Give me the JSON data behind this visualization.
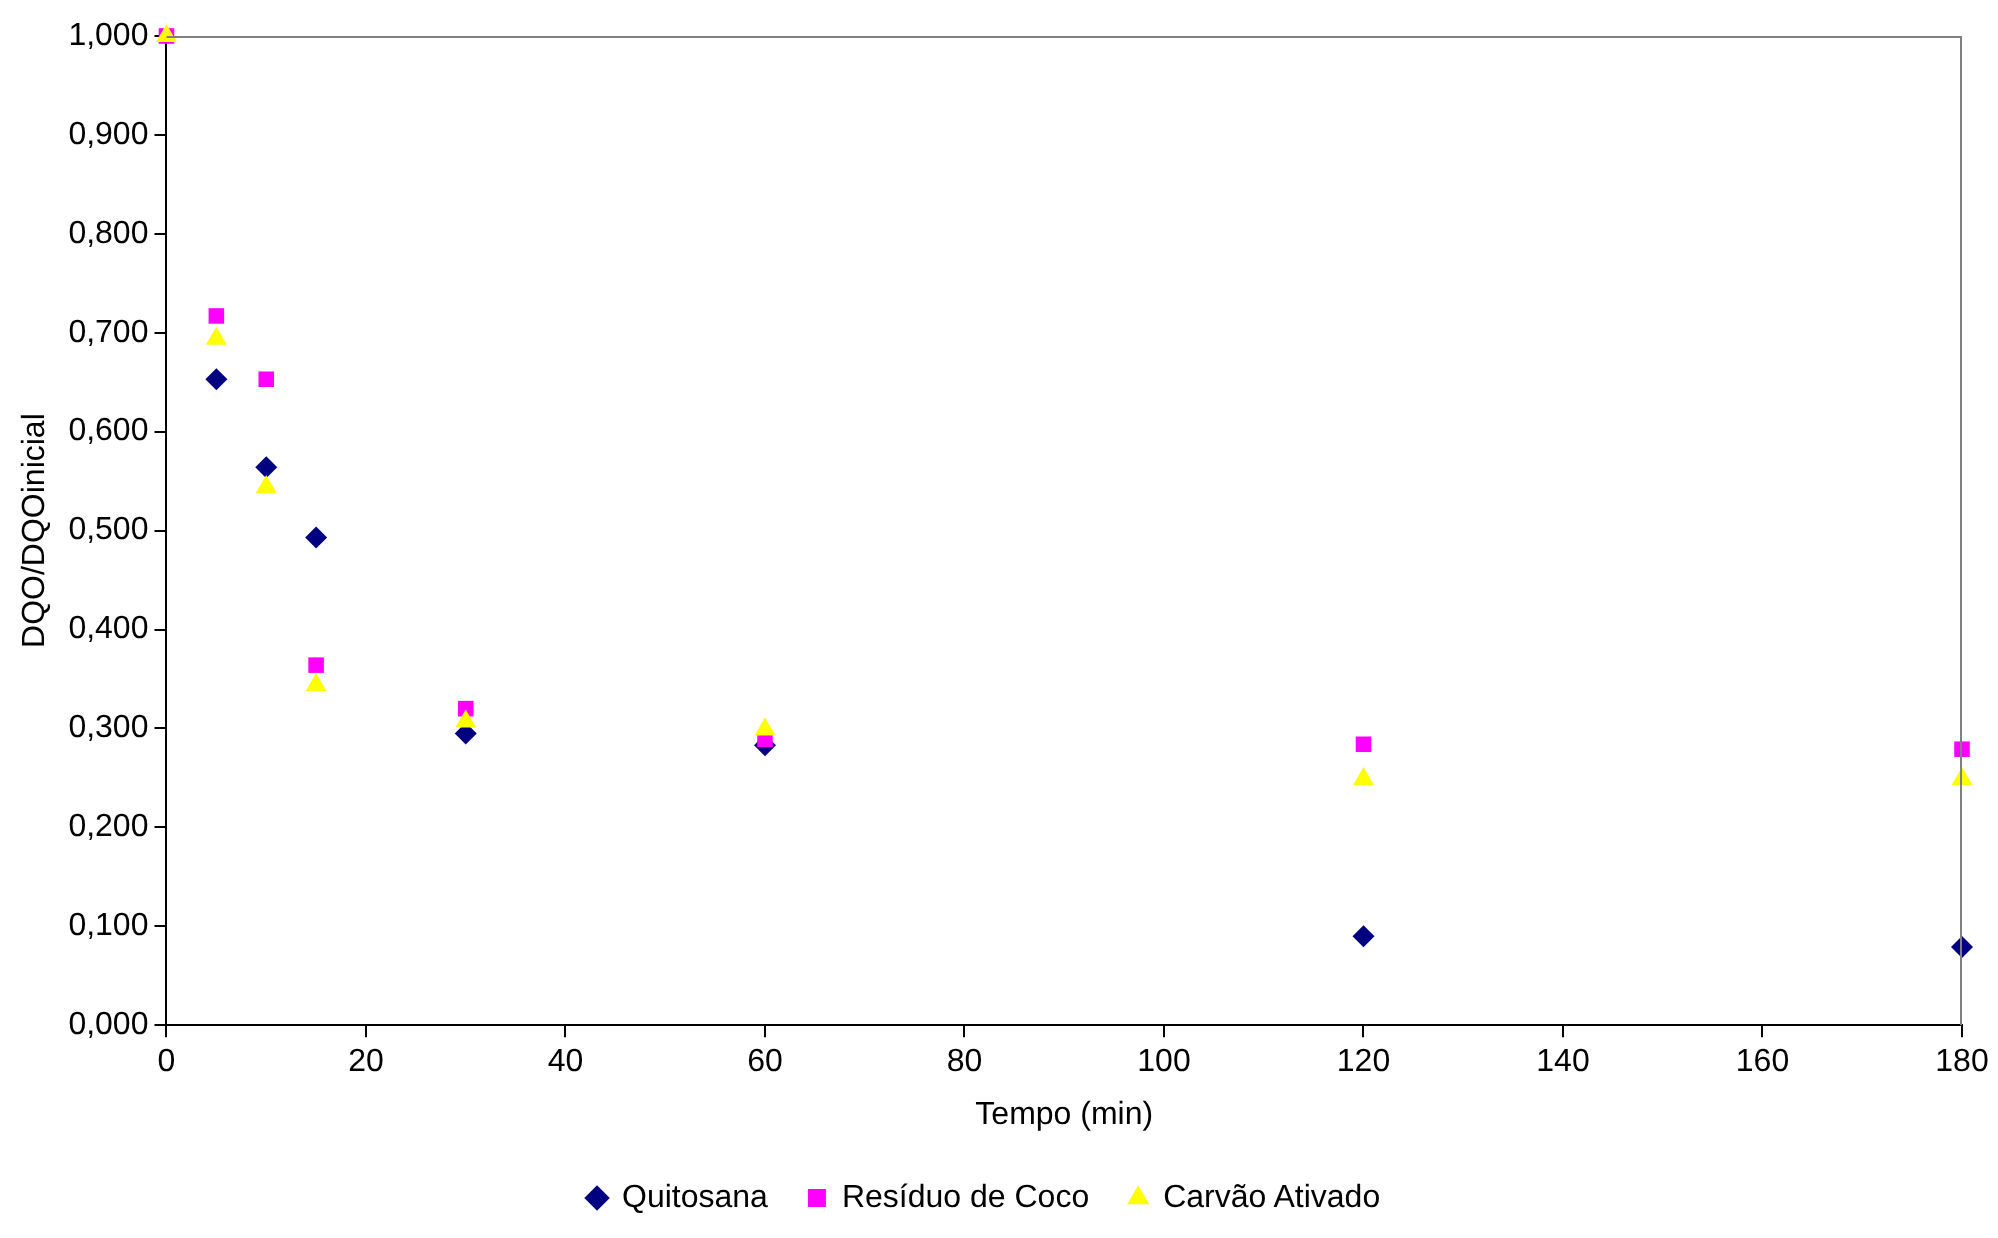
{
  "chart_data": {
    "type": "scatter",
    "xlabel": "Tempo (min)",
    "ylabel": "DQO/DQOinicial",
    "x": [
      0,
      5,
      10,
      15,
      30,
      60,
      120,
      180
    ],
    "series": [
      {
        "name": "Quitosana",
        "color": "#000080",
        "marker": "diamond",
        "values": [
          null,
          0.653,
          0.564,
          0.493,
          0.295,
          0.283,
          0.09,
          0.079
        ]
      },
      {
        "name": "Resíduo de Coco",
        "color": "#ff00ff",
        "marker": "square",
        "values": [
          1.0,
          0.717,
          0.653,
          0.364,
          0.32,
          0.289,
          0.284,
          0.279
        ]
      },
      {
        "name": "Carvão Ativado",
        "color": "#ffff00",
        "marker": "triangle",
        "values": [
          1.0,
          0.694,
          0.544,
          0.344,
          0.307,
          0.299,
          0.249,
          0.249
        ]
      }
    ],
    "xlim": [
      0,
      180
    ],
    "xticks": [
      0,
      20,
      40,
      60,
      80,
      100,
      120,
      140,
      160,
      180
    ],
    "ylim": [
      0,
      1
    ],
    "yticks": [
      {
        "value": 0,
        "label": "0,000"
      },
      {
        "value": 0.1,
        "label": "0,100"
      },
      {
        "value": 0.2,
        "label": "0,200"
      },
      {
        "value": 0.3,
        "label": "0,300"
      },
      {
        "value": 0.4,
        "label": "0,400"
      },
      {
        "value": 0.5,
        "label": "0,500"
      },
      {
        "value": 0.6,
        "label": "0,600"
      },
      {
        "value": 0.7,
        "label": "0,700"
      },
      {
        "value": 0.8,
        "label": "0,800"
      },
      {
        "value": 0.9,
        "label": "0,900"
      },
      {
        "value": 1,
        "label": "1,000"
      }
    ],
    "grid": false,
    "legend": "bottom"
  }
}
